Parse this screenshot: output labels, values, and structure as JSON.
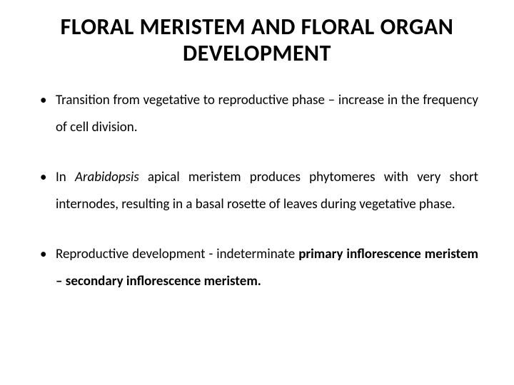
{
  "slide": {
    "title": "FLORAL MERISTEM AND FLORAL ORGAN DEVELOPMENT",
    "title_fontsize": 32,
    "title_fontweight": "bold",
    "title_color": "#000000",
    "background_color": "#ffffff",
    "bullets": [
      {
        "text_parts": [
          {
            "text": "Transition from vegetative to reproductive phase – increase in the frequency of cell division.",
            "style": "normal"
          }
        ]
      },
      {
        "text_parts": [
          {
            "text": "In ",
            "style": "normal"
          },
          {
            "text": "Arabidopsis",
            "style": "italic"
          },
          {
            "text": " apical meristem produces phytomeres with very short internodes, resulting in a basal rosette of leaves during vegetative phase.",
            "style": "normal"
          }
        ]
      },
      {
        "text_parts": [
          {
            "text": "Reproductive development - indeterminate ",
            "style": "normal"
          },
          {
            "text": "primary inflorescence meristem – secondary inflorescence meristem.",
            "style": "bold"
          }
        ]
      }
    ],
    "bullet_fontsize": 19,
    "bullet_line_height": 2.0,
    "bullet_marker": "•",
    "text_align": "justify",
    "font_family": "Calibri"
  }
}
